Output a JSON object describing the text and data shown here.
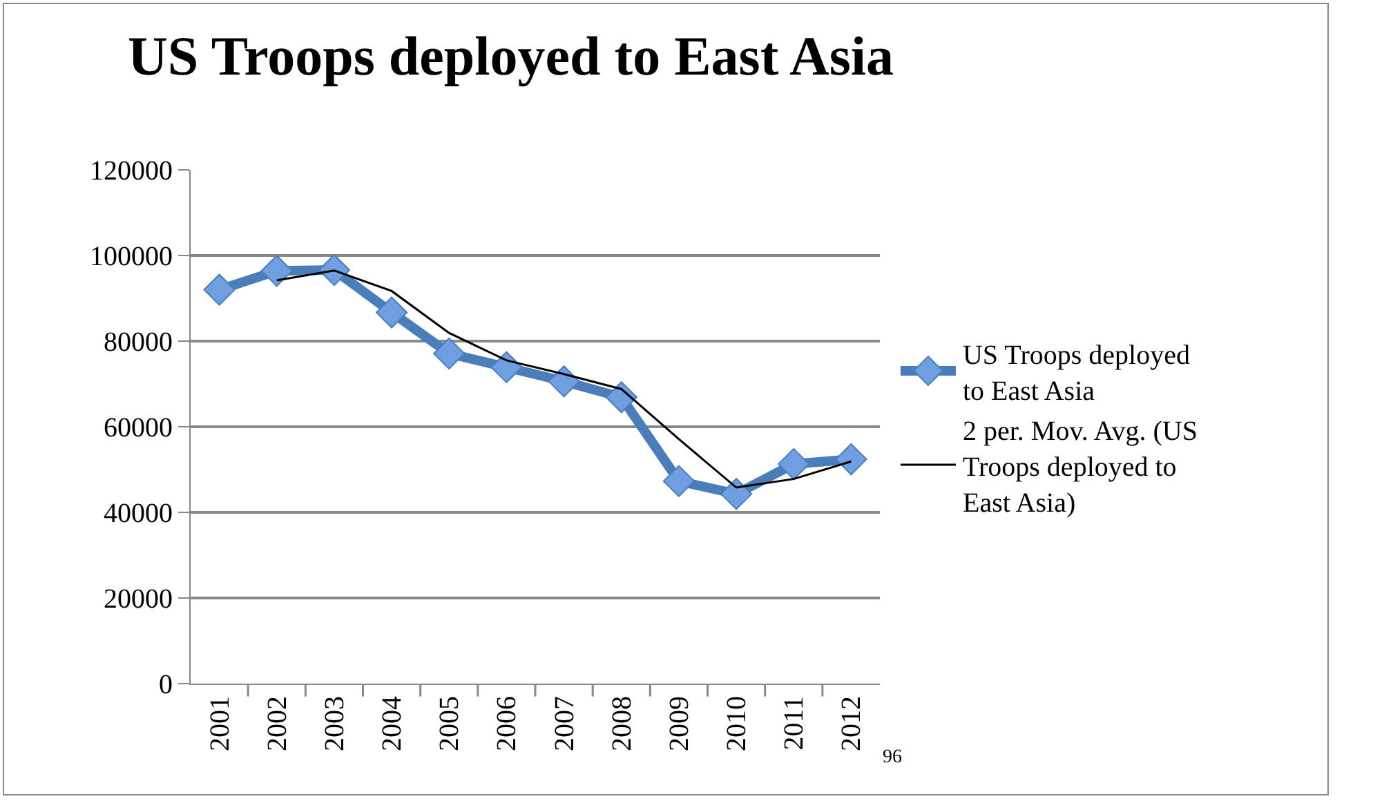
{
  "chart_data": {
    "type": "line",
    "title": "US Troops deployed to East Asia",
    "categories": [
      "2001",
      "2002",
      "2003",
      "2004",
      "2005",
      "2006",
      "2007",
      "2008",
      "2009",
      "2010",
      "2011",
      "2012"
    ],
    "series": [
      {
        "name": "US Troops deployed to East Asia",
        "color": "#4a7ebb",
        "marker": "diamond",
        "line_style": "solid",
        "values": [
          92000,
          96400,
          96600,
          86700,
          77100,
          73900,
          70600,
          66900,
          47300,
          44300,
          51300,
          52400
        ]
      },
      {
        "name": "2 per. Mov. Avg. (US Troops deployed to East Asia)",
        "color": "#000000",
        "marker": "none",
        "line_style": "solid",
        "values": [
          null,
          94200,
          96500,
          91700,
          81900,
          75500,
          72300,
          68800,
          57100,
          45800,
          47800,
          51900
        ]
      }
    ],
    "ylim": [
      0,
      120000
    ],
    "yticks": [
      0,
      20000,
      40000,
      60000,
      80000,
      100000,
      120000
    ],
    "grid": "y",
    "legend": "right",
    "annotations": [
      "96"
    ]
  }
}
